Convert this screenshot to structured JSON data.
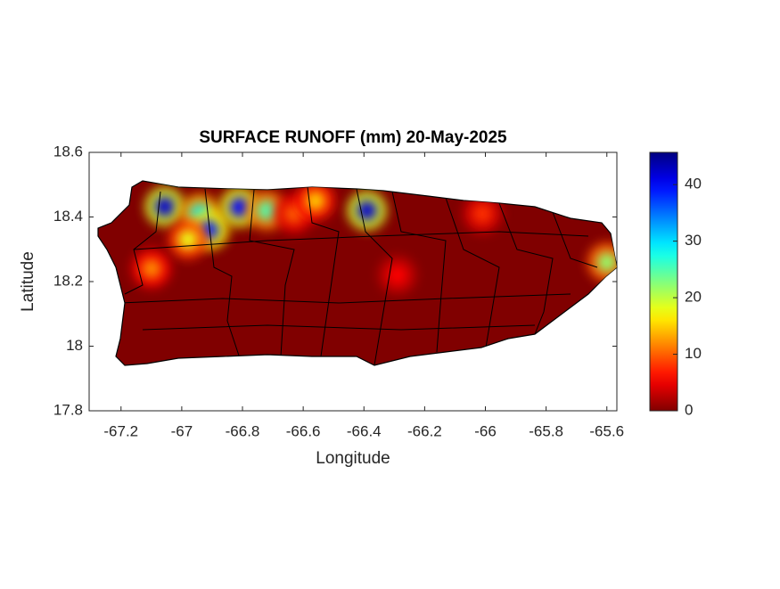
{
  "chart_data": {
    "type": "map",
    "title": "SURFACE RUNOFF (mm) 20-May-2025",
    "x_label": "Longitude",
    "y_label": "Latitude",
    "xlim": [
      -67.305,
      -65.567
    ],
    "ylim": [
      17.8,
      18.6
    ],
    "xticks": [
      -67.2,
      -67,
      -66.8,
      -66.6,
      -66.4,
      -66.2,
      -66,
      -65.8,
      -65.6
    ],
    "yticks": [
      17.8,
      18,
      18.2,
      18.4,
      18.6
    ],
    "colormap": "jet reversed",
    "clim": [
      0,
      45.7
    ],
    "cticks": [
      0,
      10,
      20,
      30,
      40
    ],
    "background_value": 0,
    "hotspots": {
      "x": [
        -67.056,
        -66.94,
        -66.91,
        -66.81,
        -66.98,
        -67.1,
        -66.72,
        -66.63,
        -66.56,
        -66.39,
        -66.01,
        -66.29,
        -65.6
      ],
      "y": [
        18.432,
        18.41,
        18.36,
        18.43,
        18.33,
        18.24,
        18.42,
        18.41,
        18.45,
        18.42,
        18.41,
        18.22,
        18.26
      ],
      "values": [
        42,
        30,
        38,
        40,
        18,
        12,
        25,
        10,
        15,
        42,
        8,
        6,
        22
      ]
    }
  }
}
